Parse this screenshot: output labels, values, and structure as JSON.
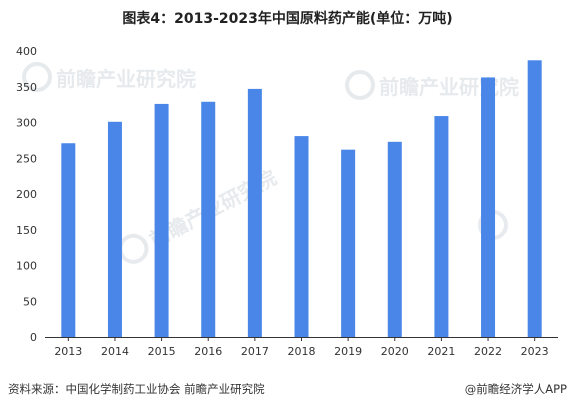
{
  "title": "图表4：2013-2023年中国原料药产能(单位：万吨)",
  "source": "资料来源：中国化学制药工业协会 前瞻产业研究院",
  "brand": "@前瞻经济学人APP",
  "watermark": "前瞻产业研究院",
  "colors": {
    "bar": "#4a86e8",
    "axis": "#333333"
  },
  "chart_data": {
    "type": "bar",
    "categories": [
      "2013",
      "2014",
      "2015",
      "2016",
      "2017",
      "2018",
      "2019",
      "2020",
      "2021",
      "2022",
      "2023"
    ],
    "values": [
      271,
      301,
      326,
      329,
      347,
      281,
      262,
      273,
      309,
      363,
      387
    ],
    "title": "图表4：2013-2023年中国原料药产能(单位：万吨)",
    "xlabel": "",
    "ylabel": "",
    "ylim": [
      0,
      400
    ],
    "yticks": [
      0,
      50,
      100,
      150,
      200,
      250,
      300,
      350,
      400
    ],
    "grid": false,
    "legend": "none"
  }
}
